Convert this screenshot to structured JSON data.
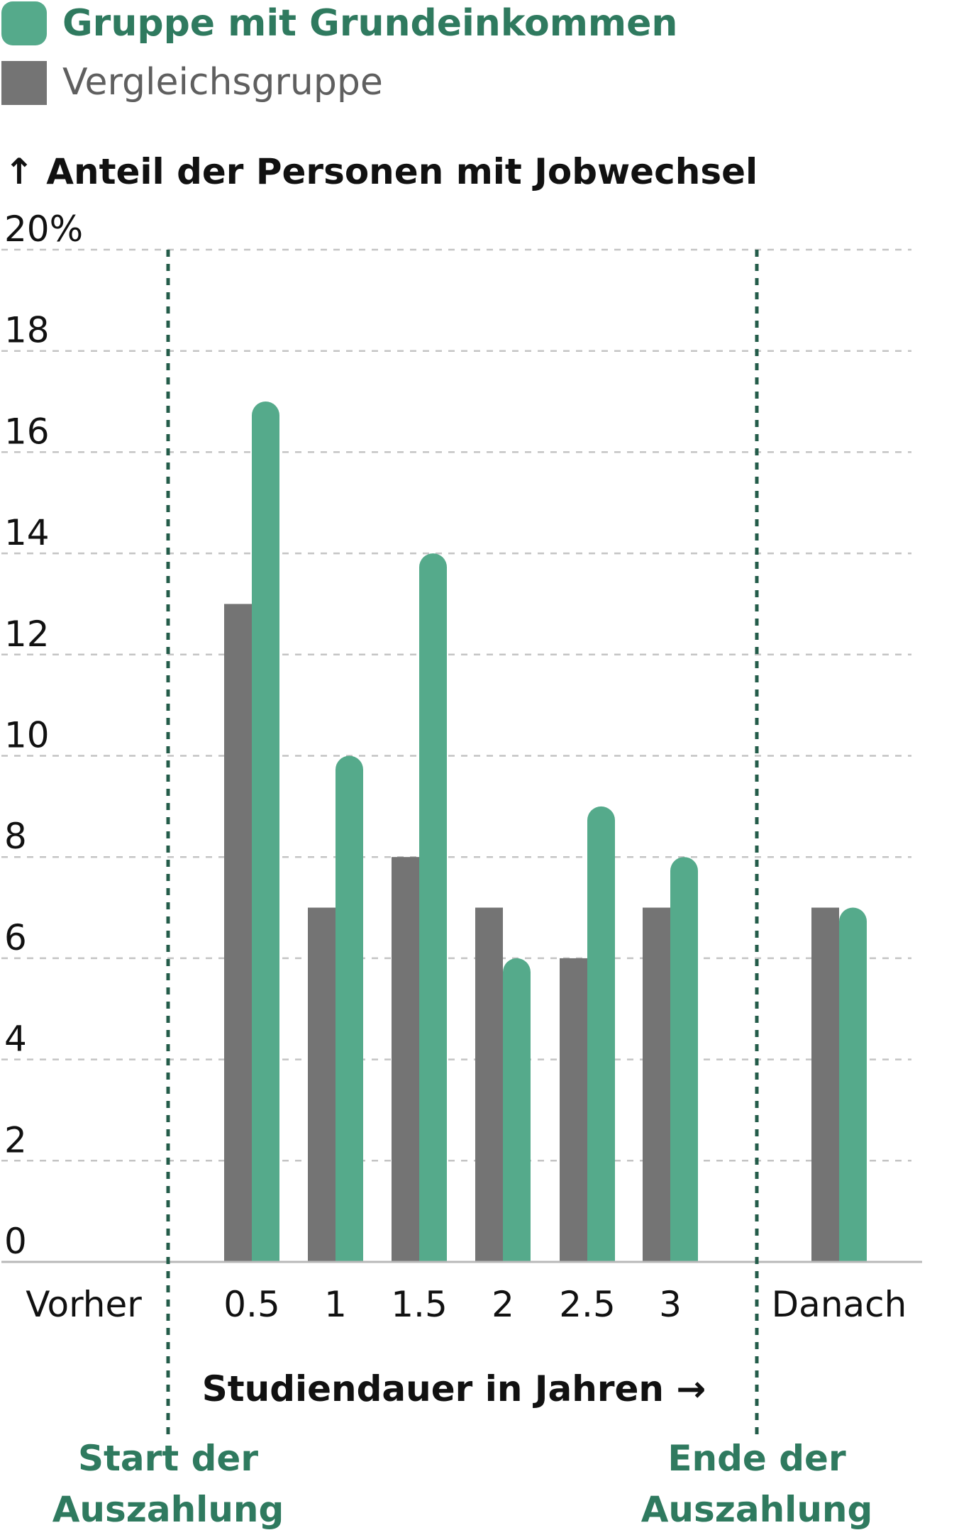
{
  "colors": {
    "treatment": "#55aa8b",
    "control": "#747474",
    "grid": "#c4c4c4",
    "baseline": "#b8b8b8",
    "marker": "#245c4a",
    "marker_text": "#2f7a5f",
    "text": "#111111",
    "legend_text": "#5f5f5f"
  },
  "legend": {
    "treatment_label": "Gruppe mit Grundeinkommen",
    "control_label": "Vergleichsgruppe"
  },
  "axis": {
    "y_title": "↑ Anteil der Personen mit Jobwechsel",
    "x_title": "Studiendauer in Jahren →"
  },
  "markers": {
    "start_line1": "Start der",
    "start_line2": "Auszahlung",
    "end_line1": "Ende der",
    "end_line2": "Auszahlung"
  },
  "chart_data": {
    "type": "bar",
    "categories": [
      "Vorher",
      "0.5",
      "1",
      "1.5",
      "2",
      "2.5",
      "3",
      "Danach"
    ],
    "series": [
      {
        "name": "Vergleichsgruppe",
        "values": [
          null,
          13,
          7,
          8,
          7,
          6,
          7,
          7
        ]
      },
      {
        "name": "Gruppe mit Grundeinkommen",
        "values": [
          null,
          17,
          10,
          14,
          6,
          9,
          8,
          7
        ]
      }
    ],
    "ylim": [
      0,
      20
    ],
    "y_ticks": [
      0,
      2,
      4,
      6,
      8,
      10,
      12,
      14,
      16,
      18,
      20
    ],
    "y_tick_labels": [
      "0",
      "2",
      "4",
      "6",
      "8",
      "10",
      "12",
      "14",
      "16",
      "18",
      "20%"
    ],
    "grid": true,
    "legend_position": "top-left"
  }
}
